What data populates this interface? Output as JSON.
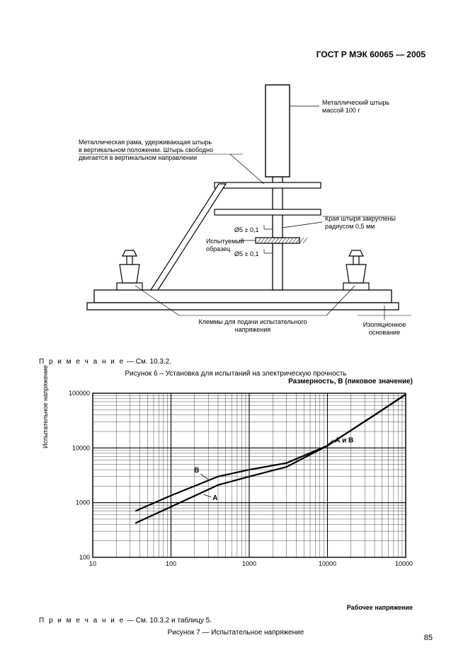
{
  "header": "ГОСТ Р МЭК 60065 — 2005",
  "page_number": "85",
  "fig6": {
    "note_prefix": "П р и м е ч а н и е",
    "note_text": " — См. 10.3.2.",
    "caption": "Рисунок 6 – Установка для испытаний на электрическую прочность",
    "labels": {
      "pin": "Металлический штырь\nмассой 100 г",
      "frame": "Металлическая рама, удерживающая штырь\nв вертикальном положении. Штырь свободно\nдвигается в вертикальном направлении",
      "dia_top": "Ø5 ± 0,1",
      "dia_bot": "Ø5 ± 0,1",
      "edges": "Края штыря закруглены\nрадиусом 0,5 мм",
      "sample": "Испытуемый\nобразец",
      "terminals": "Клеммы для подачи испытательного\nнапряжения",
      "base": "Изоляционное\nоснование"
    },
    "colors": {
      "stroke": "#000000",
      "fill": "#ffffff",
      "hatch": "#000000"
    }
  },
  "fig7": {
    "title": "Размерность, В (пиковое значение)",
    "ylabel": "Испытательное напряжение",
    "xlabel": "Рабочее напряжение",
    "note_prefix": "П р и м е ч а н и е",
    "note_text": " — См. 10.3.2 и таблицу 5.",
    "caption": "Рисунок 7 — Испытательное напряжение",
    "x_ticks": [
      "10",
      "100",
      "1000",
      "10000",
      "100000"
    ],
    "y_ticks": [
      "100",
      "1000",
      "10000",
      "100000"
    ],
    "x_range": [
      10,
      100000
    ],
    "y_range": [
      100,
      100000
    ],
    "curves": {
      "A": {
        "label": "A",
        "points": [
          [
            35,
            420
          ],
          [
            100,
            840
          ],
          [
            400,
            2100
          ],
          [
            1000,
            3000
          ],
          [
            3000,
            4500
          ],
          [
            10000,
            11000
          ],
          [
            40000,
            40000
          ],
          [
            100000,
            95000
          ]
        ]
      },
      "B": {
        "label": "B",
        "points": [
          [
            35,
            700
          ],
          [
            100,
            1350
          ],
          [
            400,
            3000
          ],
          [
            1000,
            4000
          ],
          [
            3000,
            5300
          ],
          [
            10000,
            11000
          ],
          [
            40000,
            40000
          ],
          [
            100000,
            95000
          ]
        ]
      },
      "AB": {
        "label": "А и В"
      }
    },
    "colors": {
      "line": "#000000",
      "grid": "#000000",
      "bg": "#ffffff"
    },
    "line_width_main": 2.2,
    "line_width_grid_major": 1.1,
    "line_width_grid_minor": 0.35
  }
}
